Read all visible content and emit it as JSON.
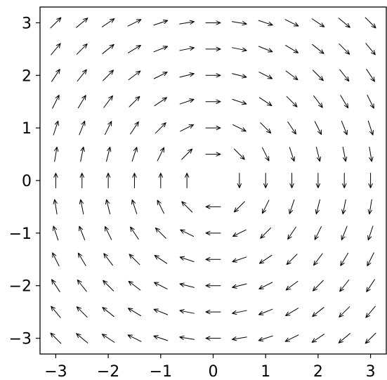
{
  "chart_data": {
    "type": "quiver",
    "title": "",
    "xlabel": "",
    "ylabel": "",
    "xlim": [
      -3.3,
      3.3
    ],
    "ylim": [
      -3.3,
      3.3
    ],
    "grid": false,
    "x_ticks": [
      -3,
      -2,
      -1,
      0,
      1,
      2,
      3
    ],
    "x_tick_labels": [
      "−3",
      "−2",
      "−1",
      "0",
      "1",
      "2",
      "3"
    ],
    "y_ticks": [
      3,
      2,
      1,
      0,
      -1,
      -2,
      -3
    ],
    "y_tick_labels": [
      "3",
      "2",
      "1",
      "0",
      "−1",
      "−2",
      "−3"
    ],
    "grid_x": [
      -3,
      -2.5,
      -2,
      -1.5,
      -1,
      -0.5,
      0,
      0.5,
      1,
      1.5,
      2,
      2.5,
      3
    ],
    "grid_y": [
      3,
      2.5,
      2,
      1.5,
      1,
      0.5,
      0,
      -0.5,
      -1,
      -1.5,
      -2,
      -2.5,
      -3
    ],
    "vector_field": {
      "description": "vector (y, -x) normalized to unit length at each grid point; omitted at origin",
      "u_expr": "y",
      "v_expr": "-x",
      "normalized": true,
      "omit_points": [
        [
          0,
          0
        ]
      ]
    },
    "arrow_color": "#000000"
  }
}
